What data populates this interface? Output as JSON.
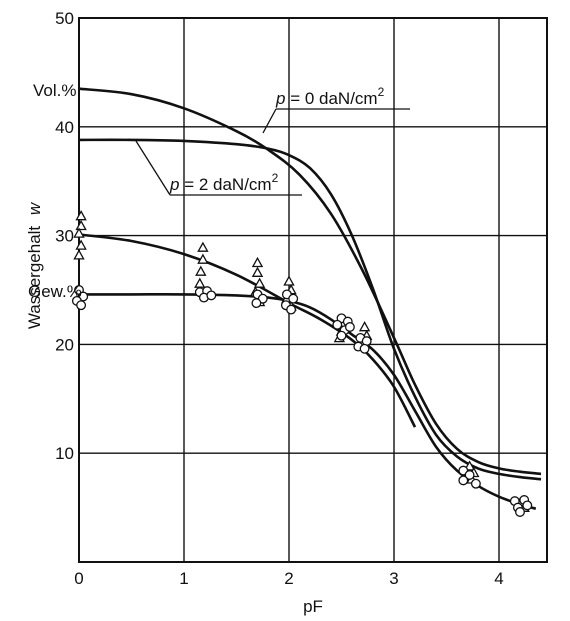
{
  "chart_data": {
    "type": "line",
    "xlabel": "pF",
    "ylabel": "Wassergehalt",
    "ylabel_symbol": "w",
    "xlim": [
      0,
      4.4
    ],
    "ylim": [
      0,
      50
    ],
    "xticks": [
      "0",
      "1",
      "2",
      "3",
      "4"
    ],
    "yticks": [
      "10",
      "20",
      "30",
      "40",
      "50"
    ],
    "grid": true,
    "unit_labels": {
      "vol": "Vol.%",
      "gew": "Gew.%"
    },
    "curve_labels": {
      "p0": {
        "prefix": "p",
        "text": " = 0 daN/cm",
        "sup": "2"
      },
      "p2": {
        "prefix": "p",
        "text": " = 2 daN/cm",
        "sup": "2"
      }
    },
    "series": [
      {
        "key": "p0_vol",
        "x": [
          0,
          0.5,
          1.0,
          1.5,
          1.8,
          2.1,
          2.4,
          2.7,
          3.0,
          3.2,
          3.4,
          3.6,
          3.8,
          4.0,
          4.2,
          4.4
        ],
        "y": [
          43.5,
          43.0,
          41.7,
          39.6,
          37.9,
          35.6,
          32.0,
          26.8,
          20.6,
          16.3,
          12.7,
          10.4,
          9.2,
          8.6,
          8.3,
          8.1
        ]
      },
      {
        "key": "p2_vol",
        "x": [
          0,
          0.5,
          1.0,
          1.5,
          1.8,
          2.0,
          2.2,
          2.4,
          2.6,
          2.8,
          3.0,
          3.2,
          3.4,
          3.6,
          3.8,
          4.0,
          4.2,
          4.4
        ],
        "y": [
          38.8,
          38.8,
          38.7,
          38.4,
          38.0,
          37.4,
          36.2,
          33.8,
          30.0,
          25.1,
          19.6,
          15.2,
          11.7,
          9.7,
          8.6,
          8.1,
          7.8,
          7.6
        ]
      },
      {
        "key": "p2_gew",
        "x": [
          0,
          0.5,
          1.0,
          1.5,
          2.0,
          2.3,
          2.6,
          2.8,
          3.0,
          3.2
        ],
        "y": [
          30.1,
          29.5,
          28.3,
          26.4,
          23.8,
          22.3,
          20.4,
          18.6,
          16.1,
          12.4
        ]
      },
      {
        "key": "p0_gew",
        "x": [
          0,
          0.5,
          1.0,
          1.5,
          1.8,
          2.0,
          2.2,
          2.4,
          2.6,
          2.8,
          3.0,
          3.2,
          3.4,
          3.6,
          3.8,
          4.0,
          4.2,
          4.35
        ],
        "y": [
          24.6,
          24.6,
          24.6,
          24.5,
          24.3,
          24.0,
          23.4,
          22.3,
          20.9,
          19.5,
          17.2,
          13.9,
          10.6,
          8.4,
          7.0,
          6.0,
          5.3,
          4.9
        ]
      }
    ],
    "triangles": [
      [
        0.02,
        31.8
      ],
      [
        0.02,
        30.9
      ],
      [
        0.0,
        30.2
      ],
      [
        0.02,
        29.1
      ],
      [
        0.0,
        28.2
      ],
      [
        1.18,
        28.9
      ],
      [
        1.18,
        27.8
      ],
      [
        1.16,
        26.7
      ],
      [
        1.15,
        25.6
      ],
      [
        1.7,
        27.5
      ],
      [
        1.7,
        26.6
      ],
      [
        1.72,
        25.6
      ],
      [
        1.68,
        24.8
      ],
      [
        1.72,
        23.9
      ],
      [
        2.0,
        25.8
      ],
      [
        2.02,
        25.0
      ],
      [
        1.98,
        24.2
      ],
      [
        2.02,
        23.5
      ],
      [
        2.5,
        21.2
      ],
      [
        2.48,
        20.6
      ],
      [
        2.52,
        22.0
      ],
      [
        2.72,
        21.6
      ],
      [
        2.74,
        20.8
      ],
      [
        2.7,
        20.2
      ],
      [
        3.72,
        8.8
      ],
      [
        3.76,
        8.2
      ],
      [
        3.74,
        7.6
      ],
      [
        4.2,
        5.4
      ],
      [
        4.24,
        5.0
      ]
    ],
    "circles": [
      [
        0.0,
        25.0
      ],
      [
        0.04,
        24.4
      ],
      [
        -0.02,
        24.0
      ],
      [
        0.02,
        23.6
      ],
      [
        1.15,
        24.8
      ],
      [
        1.22,
        24.9
      ],
      [
        1.19,
        24.3
      ],
      [
        1.26,
        24.5
      ],
      [
        1.7,
        24.6
      ],
      [
        1.75,
        24.2
      ],
      [
        1.69,
        23.8
      ],
      [
        1.98,
        24.6
      ],
      [
        2.04,
        24.2
      ],
      [
        1.97,
        23.6
      ],
      [
        2.02,
        23.2
      ],
      [
        2.5,
        22.4
      ],
      [
        2.56,
        22.1
      ],
      [
        2.46,
        21.8
      ],
      [
        2.53,
        21.3
      ],
      [
        2.58,
        21.6
      ],
      [
        2.5,
        20.8
      ],
      [
        2.68,
        20.6
      ],
      [
        2.74,
        20.3
      ],
      [
        2.66,
        19.8
      ],
      [
        2.72,
        19.6
      ],
      [
        3.66,
        8.4
      ],
      [
        3.72,
        8.0
      ],
      [
        3.66,
        7.5
      ],
      [
        3.78,
        7.2
      ],
      [
        4.15,
        5.6
      ],
      [
        4.24,
        5.7
      ],
      [
        4.18,
        5.0
      ],
      [
        4.27,
        5.2
      ],
      [
        4.2,
        4.6
      ]
    ]
  }
}
